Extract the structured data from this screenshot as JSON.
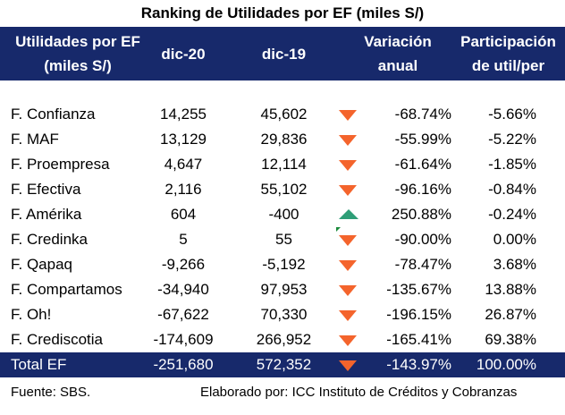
{
  "table": {
    "title": "Ranking de Utilidades por EF (miles S/)",
    "headers": {
      "entity_line1": "Utilidades por EF",
      "entity_line2": "(miles S/)",
      "dic20": "dic-20",
      "dic19": "dic-19",
      "variation_line1": "Variación",
      "variation_line2": "anual",
      "participation_line1": "Participación",
      "participation_line2": "de util/per"
    },
    "rows": [
      {
        "name": "F. Confianza",
        "dic20": "14,255",
        "dic19": "45,602",
        "trend": "down",
        "variation": "-68.74%",
        "participation": "-5.66%"
      },
      {
        "name": "F. MAF",
        "dic20": "13,129",
        "dic19": "29,836",
        "trend": "down",
        "variation": "-55.99%",
        "participation": "-5.22%"
      },
      {
        "name": "F. Proempresa",
        "dic20": "4,647",
        "dic19": "12,114",
        "trend": "down",
        "variation": "-61.64%",
        "participation": "-1.85%"
      },
      {
        "name": "F. Efectiva",
        "dic20": "2,116",
        "dic19": "55,102",
        "trend": "down",
        "variation": "-96.16%",
        "participation": "-0.84%"
      },
      {
        "name": "F. Amérika",
        "dic20": "604",
        "dic19": "-400",
        "trend": "up",
        "variation": "250.88%",
        "participation": "-0.24%"
      },
      {
        "name": "F. Credinka",
        "dic20": "5",
        "dic19": "55",
        "trend": "down",
        "variation": "-90.00%",
        "participation": "0.00%"
      },
      {
        "name": "F. Qapaq",
        "dic20": "-9,266",
        "dic19": "-5,192",
        "trend": "down",
        "variation": "-78.47%",
        "participation": "3.68%"
      },
      {
        "name": "F. Compartamos",
        "dic20": "-34,940",
        "dic19": "97,953",
        "trend": "down",
        "variation": "-135.67%",
        "participation": "13.88%"
      },
      {
        "name": "F. Oh!",
        "dic20": "-67,622",
        "dic19": "70,330",
        "trend": "down",
        "variation": "-196.15%",
        "participation": "26.87%"
      },
      {
        "name": "F. Crediscotia",
        "dic20": "-174,609",
        "dic19": "266,952",
        "trend": "down",
        "variation": "-165.41%",
        "participation": "69.38%"
      }
    ],
    "total": {
      "name": "Total EF",
      "dic20": "-251,680",
      "dic19": "572,352",
      "trend": "down",
      "variation": "-143.97%",
      "participation": "100.00%"
    }
  },
  "footer": {
    "source": "Fuente: SBS.",
    "credit": "Elaborado por: ICC Instituto de Créditos y Cobranzas"
  },
  "colors": {
    "header_bg": "#17296b",
    "down_arrow": "#f4642c",
    "up_arrow": "#2e9e77"
  },
  "icons": {
    "down": "down-arrow-icon",
    "up": "up-arrow-icon"
  }
}
